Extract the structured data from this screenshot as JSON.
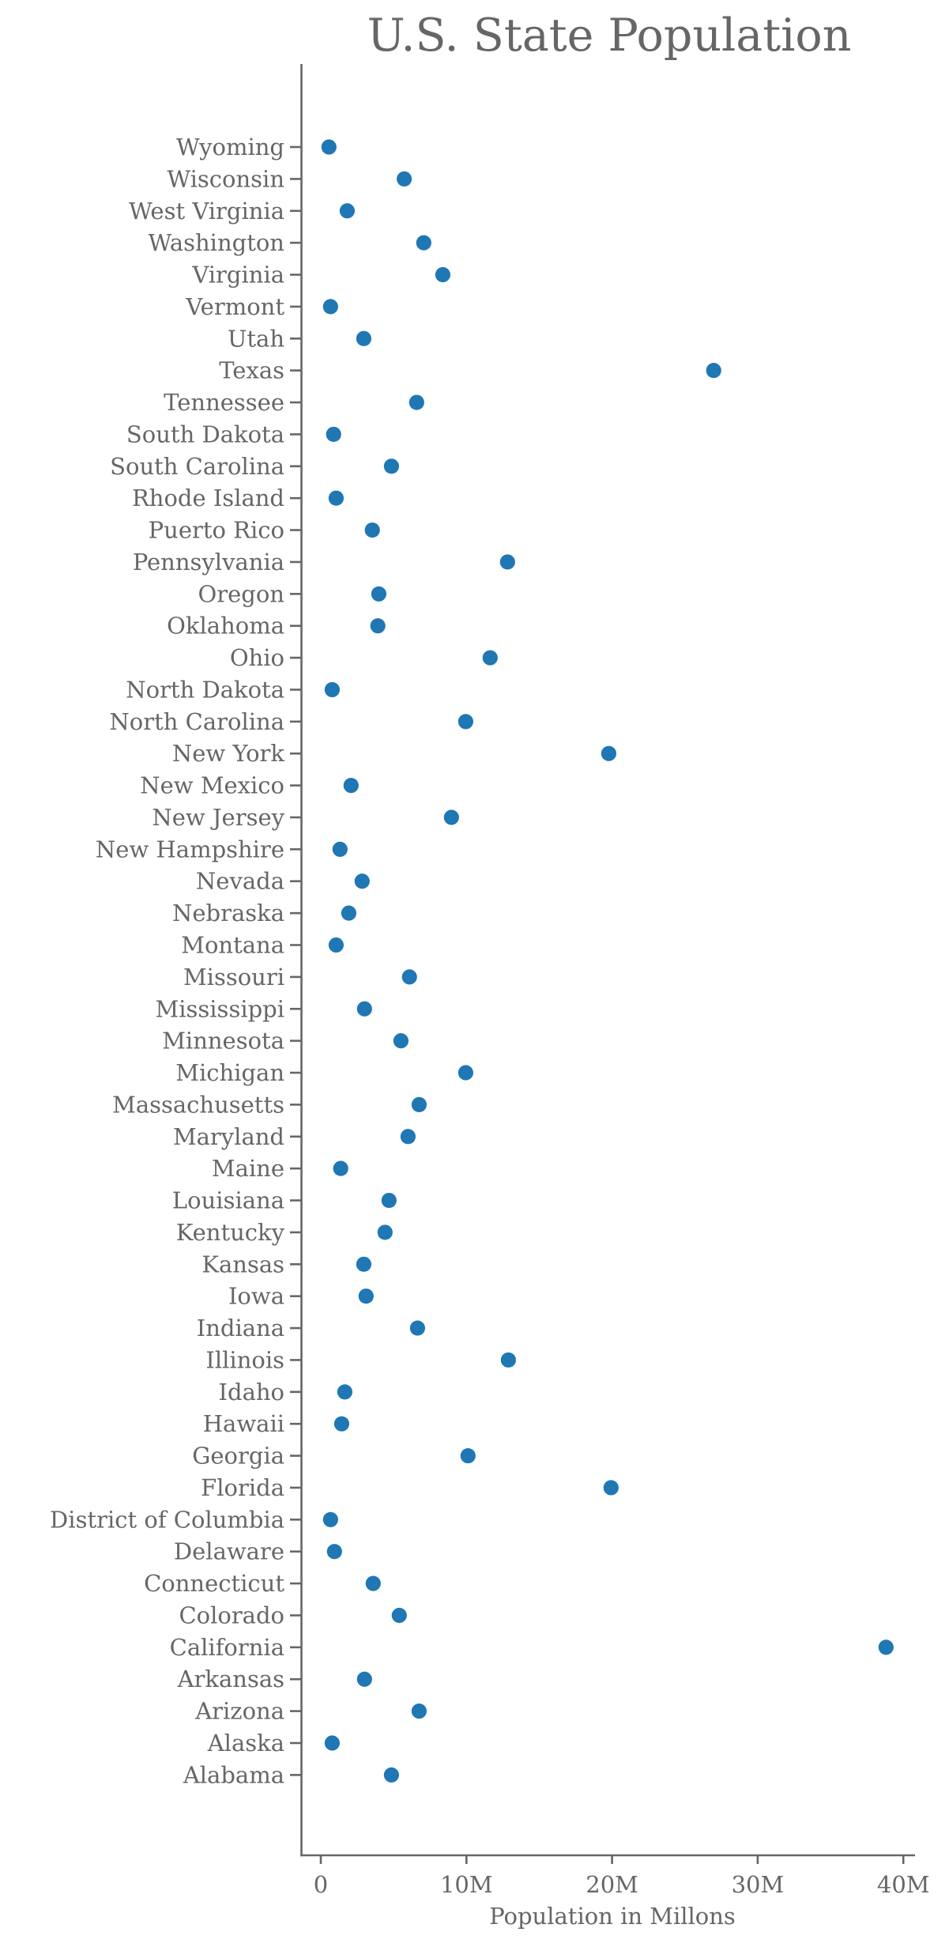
{
  "chart_data": {
    "type": "scatter",
    "title": "U.S. State Population",
    "xlabel": "Population in Millons",
    "ylabel": "",
    "xlim": [
      -1.3,
      40.8
    ],
    "xticks": [
      0,
      10,
      20,
      30,
      40
    ],
    "xtick_labels": [
      "0",
      "10M",
      "20M",
      "30M",
      "40M"
    ],
    "grid": false,
    "legend": null,
    "marker_color": "#1f77b4",
    "text_color": "#666666",
    "categories": [
      "Wyoming",
      "Wisconsin",
      "West Virginia",
      "Washington",
      "Virginia",
      "Vermont",
      "Utah",
      "Texas",
      "Tennessee",
      "South Dakota",
      "South Carolina",
      "Rhode Island",
      "Puerto Rico",
      "Pennsylvania",
      "Oregon",
      "Oklahoma",
      "Ohio",
      "North Dakota",
      "North Carolina",
      "New York",
      "New Mexico",
      "New Jersey",
      "New Hampshire",
      "Nevada",
      "Nebraska",
      "Montana",
      "Missouri",
      "Mississippi",
      "Minnesota",
      "Michigan",
      "Massachusetts",
      "Maryland",
      "Maine",
      "Louisiana",
      "Kentucky",
      "Kansas",
      "Iowa",
      "Indiana",
      "Illinois",
      "Idaho",
      "Hawaii",
      "Georgia",
      "Florida",
      "District of Columbia",
      "Delaware",
      "Connecticut",
      "Colorado",
      "California",
      "Arkansas",
      "Arizona",
      "Alaska",
      "Alabama"
    ],
    "values": [
      0.56,
      5.73,
      1.81,
      7.07,
      8.38,
      0.67,
      2.95,
      26.98,
      6.58,
      0.88,
      4.85,
      1.05,
      3.54,
      12.82,
      3.98,
      3.92,
      11.63,
      0.78,
      9.95,
      19.77,
      2.08,
      8.97,
      1.32,
      2.84,
      1.92,
      1.05,
      6.09,
      3.0,
      5.5,
      9.95,
      6.75,
      5.99,
      1.37,
      4.68,
      4.41,
      2.95,
      3.11,
      6.64,
      12.88,
      1.65,
      1.43,
      10.11,
      19.93,
      0.67,
      0.94,
      3.6,
      5.39,
      38.81,
      3.0,
      6.75,
      0.78,
      4.85
    ],
    "units": "millions"
  }
}
